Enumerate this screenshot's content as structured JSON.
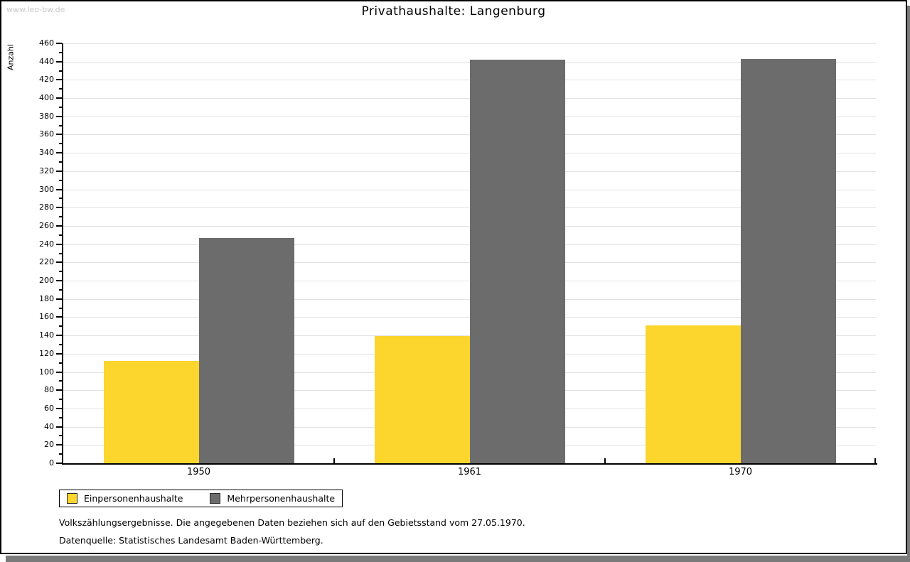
{
  "watermark": "www.leo-bw.de",
  "chart_data": {
    "type": "bar",
    "title": "Privathaushalte: Langenburg",
    "ylabel": "Anzahl",
    "xlabel": "",
    "categories": [
      "1950",
      "1961",
      "1970"
    ],
    "series": [
      {
        "name": "Einpersonenhaushalte",
        "color": "#fcd52d",
        "values": [
          112,
          139,
          151
        ]
      },
      {
        "name": "Mehrpersonenhaushalte",
        "color": "#6c6c6c",
        "values": [
          247,
          442,
          443
        ]
      }
    ],
    "ylim": [
      0,
      460
    ],
    "ytick_step": 20,
    "ytick_minor_step": 10,
    "grid": true,
    "legend_position": "bottom-left"
  },
  "footer": {
    "source_note": "Volkszählungsergebnisse. Die angegebenen Daten beziehen sich auf den Gebietsstand vom 27.05.1970.",
    "data_source": "Datenquelle: Statistisches Landesamt Baden-Württemberg."
  },
  "colors": {
    "grid": "#e2e2e2",
    "axis": "#000000",
    "shadow": "#7a7a7a",
    "watermark": "#c9c9c9"
  }
}
